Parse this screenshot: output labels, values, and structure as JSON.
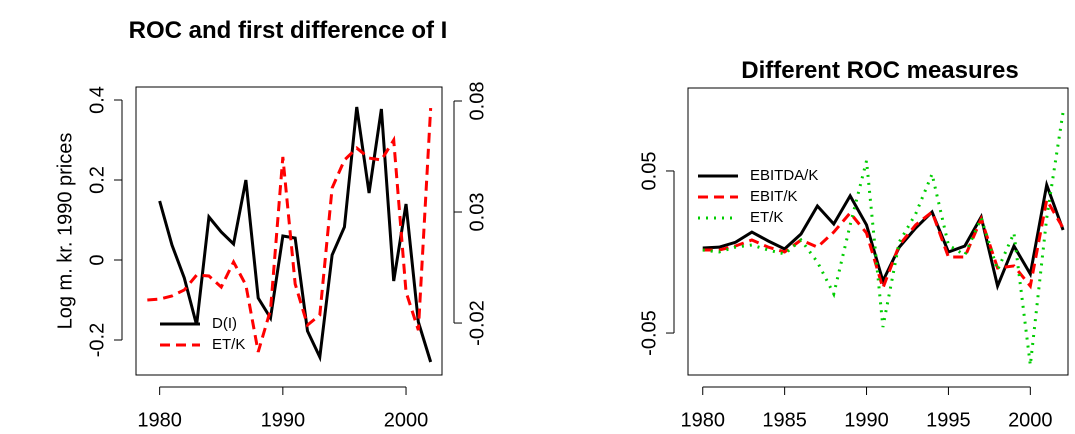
{
  "chart_data": [
    {
      "type": "line",
      "title": "ROC and first difference of I",
      "y_label": "Log m. kr. 1990 prices",
      "x": [
        1979,
        1980,
        1981,
        1982,
        1983,
        1984,
        1985,
        1986,
        1987,
        1988,
        1989,
        1990,
        1991,
        1992,
        1993,
        1994,
        1995,
        1996,
        1997,
        1998,
        1999,
        2000,
        2001,
        2002
      ],
      "xlim": [
        1978.08,
        2002.92
      ],
      "xticks": [
        1980,
        1990,
        2000
      ],
      "ylim": [
        -0.2875,
        0.4325
      ],
      "yticks": [
        -0.2,
        0.0,
        0.2,
        0.4
      ],
      "y2lim": [
        -0.0434,
        0.0863
      ],
      "y2ticks": [
        -0.02,
        0.03,
        0.08
      ],
      "legend": "bottomleft",
      "series": [
        {
          "name": "D(I)",
          "color": "#000000",
          "dash": "solid",
          "values": [
            null,
            0.1475,
            0.0375,
            -0.045,
            -0.1625,
            0.1075,
            0.07,
            0.04,
            0.2,
            -0.095,
            -0.145,
            0.06,
            0.055,
            -0.1775,
            -0.2425,
            0.0125,
            0.0825,
            0.3825,
            0.1675,
            0.3775,
            -0.0525,
            0.14,
            -0.155,
            -0.255
          ]
        },
        {
          "name": "ET/K",
          "color": "#ff0000",
          "dash": "dashed",
          "axis": "y2",
          "values": [
            -0.0096,
            -0.0092,
            -0.0078,
            -0.0051,
            0.0016,
            0.0012,
            -0.0038,
            0.0075,
            -0.0029,
            -0.033,
            -0.0141,
            0.0548,
            -0.0024,
            -0.0209,
            -0.0164,
            0.0408,
            0.0534,
            0.0588,
            0.0543,
            0.0534,
            0.0624,
            -0.006,
            -0.0232,
            0.0768
          ]
        }
      ]
    },
    {
      "type": "line",
      "title": "Different ROC measures",
      "x": [
        1980,
        1981,
        1982,
        1983,
        1984,
        1985,
        1986,
        1987,
        1988,
        1989,
        1990,
        1991,
        1992,
        1993,
        1994,
        1995,
        1996,
        1997,
        1998,
        1999,
        2000,
        2001,
        2002
      ],
      "xlim": [
        1979.1,
        2002.3
      ],
      "xticks": [
        1980,
        1985,
        1990,
        1995,
        2000
      ],
      "ylim": [
        -0.0759,
        0.1012
      ],
      "yticks": [
        -0.05,
        0.05
      ],
      "legend": "topleft",
      "series": [
        {
          "name": "EBITDA/K",
          "color": "#000000",
          "dash": "solid",
          "values": [
            0.0025,
            0.003,
            0.006,
            0.0123,
            0.0068,
            0.0019,
            0.0111,
            0.0284,
            0.0173,
            0.0346,
            0.0167,
            -0.0179,
            0.003,
            0.0148,
            0.0247,
            0.0,
            0.0037,
            0.0216,
            -0.021,
            0.0037,
            -0.0136,
            0.0414,
            0.0136
          ]
        },
        {
          "name": "EBIT/K",
          "color": "#ff0000",
          "dash": "dashed",
          "values": [
            0.0012,
            0.0012,
            0.0037,
            0.0074,
            0.003,
            0.0,
            0.0074,
            0.003,
            0.0123,
            0.0241,
            0.0117,
            -0.0222,
            0.0043,
            0.0167,
            0.0247,
            -0.0031,
            -0.0031,
            0.0204,
            -0.0099,
            -0.0086,
            -0.021,
            0.0321,
            0.0148
          ]
        },
        {
          "name": "ET/K",
          "color": "#00cd00",
          "dash": "dotted",
          "values": [
            0.0012,
            0.0,
            0.003,
            0.0043,
            0.0012,
            -0.0012,
            0.0074,
            -0.0062,
            -0.0259,
            0.0167,
            0.0562,
            -0.0463,
            0.0062,
            0.0235,
            0.0481,
            0.0043,
            -0.0019,
            0.021,
            -0.0111,
            0.0117,
            -0.0698,
            0.021,
            0.0864
          ]
        }
      ]
    }
  ]
}
